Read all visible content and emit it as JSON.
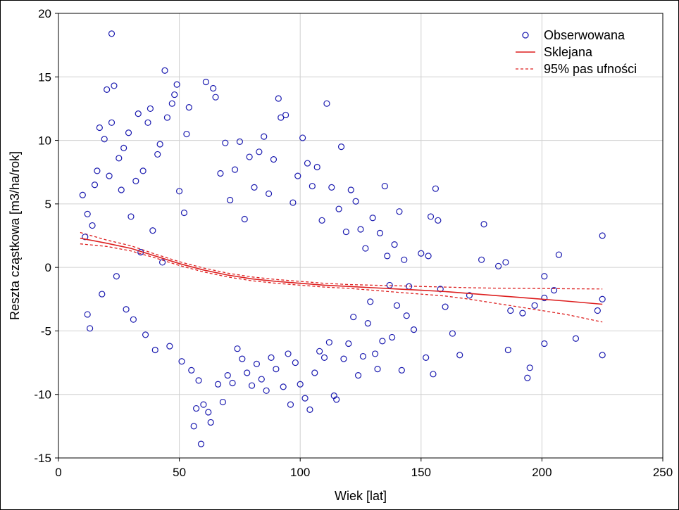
{
  "chart_data": {
    "type": "scatter",
    "title": "",
    "xlabel": "Wiek [lat]",
    "ylabel": "Reszta cząstkowa [m3/ha/rok]",
    "xlim": [
      0,
      250
    ],
    "ylim": [
      -15,
      20
    ],
    "xticks": [
      0,
      50,
      100,
      150,
      200,
      250
    ],
    "yticks": [
      -15,
      -10,
      -5,
      0,
      5,
      10,
      15,
      20
    ],
    "grid": true,
    "legend_position": "top-right",
    "colors": {
      "observed": "#1c1cb0",
      "fit": "#dd1f1f",
      "band": "#dd1f1f",
      "grid": "#d0d0d0"
    },
    "series": [
      {
        "name": "Obserwowana",
        "kind": "scatter",
        "marker": "circle-open",
        "points": [
          [
            10,
            5.7
          ],
          [
            11,
            2.4
          ],
          [
            12,
            4.2
          ],
          [
            12,
            -3.7
          ],
          [
            13,
            -4.8
          ],
          [
            14,
            3.3
          ],
          [
            15,
            6.5
          ],
          [
            16,
            7.6
          ],
          [
            17,
            11.0
          ],
          [
            18,
            -2.1
          ],
          [
            19,
            10.1
          ],
          [
            20,
            14.0
          ],
          [
            21,
            7.2
          ],
          [
            22,
            18.4
          ],
          [
            22,
            11.4
          ],
          [
            23,
            14.3
          ],
          [
            24,
            -0.7
          ],
          [
            25,
            8.6
          ],
          [
            26,
            6.1
          ],
          [
            27,
            9.4
          ],
          [
            28,
            -3.3
          ],
          [
            29,
            10.6
          ],
          [
            30,
            4.0
          ],
          [
            31,
            -4.1
          ],
          [
            32,
            6.8
          ],
          [
            33,
            12.1
          ],
          [
            34,
            1.2
          ],
          [
            35,
            7.6
          ],
          [
            36,
            -5.3
          ],
          [
            37,
            11.4
          ],
          [
            38,
            12.5
          ],
          [
            39,
            2.9
          ],
          [
            40,
            -6.5
          ],
          [
            41,
            8.9
          ],
          [
            42,
            9.7
          ],
          [
            43,
            0.4
          ],
          [
            44,
            15.5
          ],
          [
            45,
            11.8
          ],
          [
            46,
            -6.2
          ],
          [
            47,
            12.9
          ],
          [
            48,
            13.6
          ],
          [
            49,
            14.4
          ],
          [
            50,
            6.0
          ],
          [
            51,
            -7.4
          ],
          [
            52,
            4.3
          ],
          [
            53,
            10.5
          ],
          [
            54,
            12.6
          ],
          [
            55,
            -8.1
          ],
          [
            56,
            -12.5
          ],
          [
            57,
            -11.1
          ],
          [
            58,
            -8.9
          ],
          [
            59,
            -13.9
          ],
          [
            60,
            -10.8
          ],
          [
            61,
            14.6
          ],
          [
            62,
            -11.4
          ],
          [
            63,
            -12.2
          ],
          [
            64,
            14.1
          ],
          [
            65,
            13.4
          ],
          [
            66,
            -9.2
          ],
          [
            67,
            7.4
          ],
          [
            68,
            -10.6
          ],
          [
            69,
            9.8
          ],
          [
            70,
            -8.5
          ],
          [
            71,
            5.3
          ],
          [
            72,
            -9.1
          ],
          [
            73,
            7.7
          ],
          [
            74,
            -6.4
          ],
          [
            75,
            9.9
          ],
          [
            76,
            -7.2
          ],
          [
            77,
            3.8
          ],
          [
            78,
            -8.3
          ],
          [
            79,
            8.7
          ],
          [
            80,
            -9.3
          ],
          [
            81,
            6.3
          ],
          [
            82,
            -7.6
          ],
          [
            83,
            9.1
          ],
          [
            84,
            -8.8
          ],
          [
            85,
            10.3
          ],
          [
            86,
            -9.7
          ],
          [
            87,
            5.8
          ],
          [
            88,
            -7.1
          ],
          [
            89,
            8.5
          ],
          [
            90,
            -8.0
          ],
          [
            91,
            13.3
          ],
          [
            92,
            11.8
          ],
          [
            93,
            -9.4
          ],
          [
            94,
            12.0
          ],
          [
            95,
            -6.8
          ],
          [
            96,
            -10.8
          ],
          [
            97,
            5.1
          ],
          [
            98,
            -7.5
          ],
          [
            99,
            7.2
          ],
          [
            100,
            -9.2
          ],
          [
            101,
            10.2
          ],
          [
            102,
            -10.3
          ],
          [
            103,
            8.2
          ],
          [
            104,
            -11.2
          ],
          [
            105,
            6.4
          ],
          [
            106,
            -8.3
          ],
          [
            107,
            7.9
          ],
          [
            108,
            -6.6
          ],
          [
            109,
            3.7
          ],
          [
            110,
            -7.1
          ],
          [
            111,
            12.9
          ],
          [
            112,
            -5.9
          ],
          [
            113,
            6.3
          ],
          [
            114,
            -10.1
          ],
          [
            115,
            -10.4
          ],
          [
            116,
            4.6
          ],
          [
            117,
            9.5
          ],
          [
            118,
            -7.2
          ],
          [
            119,
            2.8
          ],
          [
            120,
            -6.0
          ],
          [
            121,
            6.1
          ],
          [
            122,
            -3.9
          ],
          [
            123,
            5.2
          ],
          [
            124,
            -8.5
          ],
          [
            125,
            3.0
          ],
          [
            126,
            -7.0
          ],
          [
            127,
            1.5
          ],
          [
            128,
            -4.4
          ],
          [
            129,
            -2.7
          ],
          [
            130,
            3.9
          ],
          [
            131,
            -6.8
          ],
          [
            132,
            -8.0
          ],
          [
            133,
            2.7
          ],
          [
            134,
            -5.8
          ],
          [
            135,
            6.4
          ],
          [
            136,
            0.9
          ],
          [
            137,
            -1.4
          ],
          [
            138,
            -5.5
          ],
          [
            139,
            1.8
          ],
          [
            140,
            -3.0
          ],
          [
            141,
            4.4
          ],
          [
            142,
            -8.1
          ],
          [
            143,
            0.6
          ],
          [
            144,
            -3.8
          ],
          [
            145,
            -1.5
          ],
          [
            147,
            -4.9
          ],
          [
            150,
            1.1
          ],
          [
            152,
            -7.1
          ],
          [
            153,
            0.9
          ],
          [
            154,
            4.0
          ],
          [
            155,
            -8.4
          ],
          [
            156,
            6.2
          ],
          [
            157,
            3.7
          ],
          [
            158,
            -1.7
          ],
          [
            160,
            -3.1
          ],
          [
            163,
            -5.2
          ],
          [
            166,
            -6.9
          ],
          [
            170,
            -2.2
          ],
          [
            175,
            0.6
          ],
          [
            176,
            3.4
          ],
          [
            182,
            0.1
          ],
          [
            185,
            0.4
          ],
          [
            186,
            -6.5
          ],
          [
            187,
            -3.4
          ],
          [
            192,
            -3.6
          ],
          [
            194,
            -8.7
          ],
          [
            195,
            -7.9
          ],
          [
            197,
            -3.0
          ],
          [
            201,
            -0.7
          ],
          [
            201,
            -6.0
          ],
          [
            201,
            -2.4
          ],
          [
            205,
            -1.8
          ],
          [
            207,
            1.0
          ],
          [
            214,
            -5.6
          ],
          [
            223,
            -3.4
          ],
          [
            225,
            2.5
          ],
          [
            225,
            -6.9
          ],
          [
            225,
            -2.5
          ]
        ]
      },
      {
        "name": "Sklejana",
        "kind": "line",
        "x": [
          9,
          20,
          30,
          40,
          50,
          60,
          70,
          80,
          90,
          100,
          110,
          120,
          130,
          140,
          150,
          160,
          170,
          180,
          190,
          200,
          210,
          225
        ],
        "y": [
          2.3,
          1.9,
          1.5,
          0.9,
          0.3,
          -0.2,
          -0.6,
          -0.9,
          -1.1,
          -1.25,
          -1.4,
          -1.5,
          -1.6,
          -1.7,
          -1.8,
          -1.9,
          -2.05,
          -2.2,
          -2.35,
          -2.5,
          -2.65,
          -2.9
        ]
      },
      {
        "name": "95% pas ufności",
        "kind": "band",
        "x": [
          9,
          20,
          30,
          40,
          50,
          60,
          70,
          80,
          90,
          100,
          110,
          120,
          130,
          140,
          150,
          160,
          170,
          180,
          190,
          200,
          210,
          225
        ],
        "upper": [
          2.75,
          2.15,
          1.7,
          1.05,
          0.45,
          -0.05,
          -0.45,
          -0.75,
          -0.95,
          -1.1,
          -1.25,
          -1.35,
          -1.4,
          -1.45,
          -1.5,
          -1.55,
          -1.6,
          -1.63,
          -1.65,
          -1.66,
          -1.68,
          -1.7
        ],
        "lower": [
          1.85,
          1.65,
          1.3,
          0.75,
          0.15,
          -0.35,
          -0.75,
          -1.05,
          -1.25,
          -1.4,
          -1.55,
          -1.65,
          -1.8,
          -1.95,
          -2.1,
          -2.25,
          -2.5,
          -2.8,
          -3.1,
          -3.4,
          -3.7,
          -4.3
        ]
      }
    ]
  }
}
